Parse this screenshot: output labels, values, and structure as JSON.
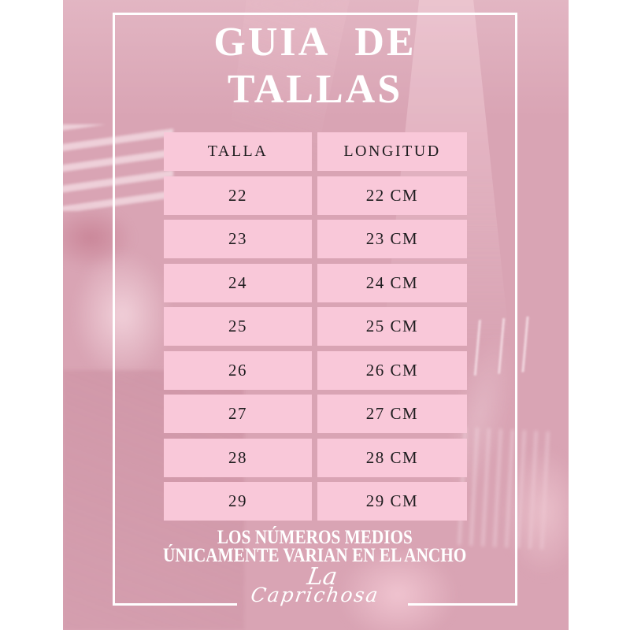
{
  "poster": {
    "title_line1": "GUIA DE",
    "title_line2": "TALLAS",
    "colors": {
      "canvas": "#ffffff",
      "photo_overlay_pink": "#d9a4b4",
      "cell_pink": "#f9c8d9",
      "cell_text": "#1e1d1f",
      "frame_white": "#ffffff",
      "title_white": "#ffffff"
    }
  },
  "table": {
    "headers": [
      "TALLA",
      "LONGITUD"
    ],
    "rows": [
      {
        "talla": "22",
        "longitud": "22 CM"
      },
      {
        "talla": "23",
        "longitud": "23 CM"
      },
      {
        "talla": "24",
        "longitud": "24 CM"
      },
      {
        "talla": "25",
        "longitud": "25 CM"
      },
      {
        "talla": "26",
        "longitud": "26 CM"
      },
      {
        "talla": "27",
        "longitud": "27 CM"
      },
      {
        "talla": "28",
        "longitud": "28 CM"
      },
      {
        "talla": "29",
        "longitud": "29 CM"
      }
    ]
  },
  "footer": {
    "line1": "LOS NÚMEROS MEDIOS",
    "line2": "ÚNICAMENTE VARIAN EN EL ANCHO"
  },
  "logo": {
    "line1": "La",
    "line2": "Caprichosa"
  }
}
